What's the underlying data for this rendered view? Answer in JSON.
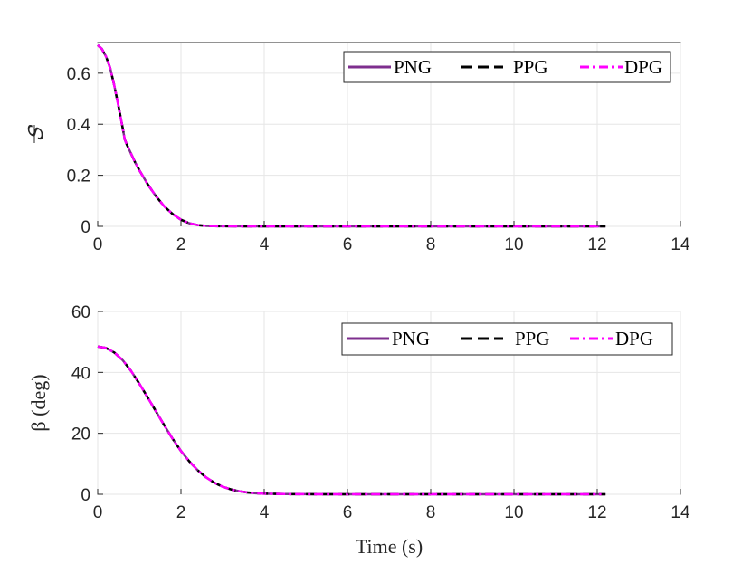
{
  "chart_data": [
    {
      "type": "line",
      "ylabel": "𝑆",
      "xlabel": "",
      "xlim": [
        0,
        14
      ],
      "ylim": [
        0,
        0.72
      ],
      "xticks": [
        "0",
        "2",
        "4",
        "6",
        "8",
        "10",
        "12",
        "14"
      ],
      "yticks": [
        "0",
        "0.2",
        "0.4",
        "0.6"
      ],
      "grid": true,
      "legend_position": "top-right",
      "series": [
        {
          "name": "PNG",
          "color": "#7e2f8e",
          "dash": "solid",
          "x": [
            0,
            0.1,
            0.2,
            0.3,
            0.4,
            0.5,
            0.6,
            0.65,
            0.7,
            0.8,
            0.9,
            1.0,
            1.2,
            1.4,
            1.6,
            1.8,
            2.0,
            2.2,
            2.4,
            2.6,
            2.8,
            3.0,
            4.0,
            6.0,
            8.0,
            10.0,
            12.0,
            12.2
          ],
          "y": [
            0.71,
            0.695,
            0.665,
            0.62,
            0.55,
            0.47,
            0.385,
            0.34,
            0.32,
            0.285,
            0.25,
            0.22,
            0.165,
            0.118,
            0.078,
            0.048,
            0.026,
            0.012,
            0.005,
            0.002,
            0.0008,
            0.0003,
            0,
            0,
            0,
            0,
            0,
            0
          ]
        },
        {
          "name": "PPG",
          "color": "#000000",
          "dash": "dashed",
          "x": [
            0,
            0.1,
            0.2,
            0.3,
            0.4,
            0.5,
            0.6,
            0.65,
            0.7,
            0.8,
            0.9,
            1.0,
            1.2,
            1.4,
            1.6,
            1.8,
            2.0,
            2.2,
            2.4,
            2.6,
            2.8,
            3.0,
            4.0,
            6.0,
            8.0,
            10.0,
            12.0,
            12.2
          ],
          "y": [
            0.71,
            0.695,
            0.665,
            0.62,
            0.55,
            0.47,
            0.385,
            0.34,
            0.32,
            0.285,
            0.25,
            0.22,
            0.165,
            0.118,
            0.078,
            0.048,
            0.026,
            0.012,
            0.005,
            0.002,
            0.0008,
            0.0003,
            0,
            0,
            0,
            0,
            0,
            0
          ]
        },
        {
          "name": "DPG",
          "color": "#ff00ff",
          "dash": "dashdot",
          "x": [
            0,
            0.1,
            0.2,
            0.3,
            0.4,
            0.5,
            0.6,
            0.65,
            0.7,
            0.8,
            0.9,
            1.0,
            1.2,
            1.4,
            1.6,
            1.8,
            2.0,
            2.2,
            2.4,
            2.6,
            2.8,
            3.0,
            4.0,
            6.0,
            8.0,
            10.0,
            12.0,
            12.1
          ],
          "y": [
            0.71,
            0.695,
            0.665,
            0.62,
            0.55,
            0.47,
            0.385,
            0.34,
            0.32,
            0.285,
            0.25,
            0.22,
            0.165,
            0.118,
            0.078,
            0.048,
            0.026,
            0.012,
            0.005,
            0.002,
            0.0008,
            0.0003,
            0,
            0,
            0,
            0,
            0,
            0
          ]
        }
      ]
    },
    {
      "type": "line",
      "ylabel": "β (deg)",
      "xlabel": "Time (s)",
      "xlim": [
        0,
        14
      ],
      "ylim": [
        0,
        60
      ],
      "xticks": [
        "0",
        "2",
        "4",
        "6",
        "8",
        "10",
        "12",
        "14"
      ],
      "yticks": [
        "0",
        "20",
        "40",
        "60"
      ],
      "grid": true,
      "legend_position": "top-right",
      "series": [
        {
          "name": "PNG",
          "color": "#7e2f8e",
          "dash": "solid",
          "x": [
            0,
            0.2,
            0.4,
            0.6,
            0.8,
            1.0,
            1.2,
            1.4,
            1.6,
            1.8,
            2.0,
            2.2,
            2.4,
            2.6,
            2.8,
            3.0,
            3.2,
            3.4,
            3.6,
            3.8,
            4.0,
            4.5,
            5.0,
            6.0,
            8.0,
            10.0,
            12.0,
            12.2
          ],
          "y": [
            48.5,
            48.0,
            46.5,
            44.0,
            40.5,
            36.3,
            31.8,
            27.2,
            22.6,
            18.2,
            14.2,
            10.8,
            7.9,
            5.6,
            3.8,
            2.5,
            1.6,
            1.0,
            0.6,
            0.35,
            0.2,
            0.06,
            0.02,
            0,
            0,
            0,
            0,
            0
          ]
        },
        {
          "name": "PPG",
          "color": "#000000",
          "dash": "dashed",
          "x": [
            0,
            0.2,
            0.4,
            0.6,
            0.8,
            1.0,
            1.2,
            1.4,
            1.6,
            1.8,
            2.0,
            2.2,
            2.4,
            2.6,
            2.8,
            3.0,
            3.2,
            3.4,
            3.6,
            3.8,
            4.0,
            4.5,
            5.0,
            6.0,
            8.0,
            10.0,
            12.0,
            12.2
          ],
          "y": [
            48.5,
            48.0,
            46.5,
            44.0,
            40.5,
            36.3,
            31.8,
            27.2,
            22.6,
            18.2,
            14.2,
            10.8,
            7.9,
            5.6,
            3.8,
            2.5,
            1.6,
            1.0,
            0.6,
            0.35,
            0.2,
            0.06,
            0.02,
            0,
            0,
            0,
            0,
            0
          ]
        },
        {
          "name": "DPG",
          "color": "#ff00ff",
          "dash": "dashdot",
          "x": [
            0,
            0.2,
            0.4,
            0.6,
            0.8,
            1.0,
            1.2,
            1.4,
            1.6,
            1.8,
            2.0,
            2.2,
            2.4,
            2.6,
            2.8,
            3.0,
            3.2,
            3.4,
            3.6,
            3.8,
            4.0,
            4.5,
            5.0,
            6.0,
            8.0,
            10.0,
            12.0,
            12.1
          ],
          "y": [
            48.5,
            48.0,
            46.5,
            44.0,
            40.5,
            36.3,
            31.8,
            27.2,
            22.6,
            18.2,
            14.2,
            10.8,
            7.9,
            5.6,
            3.8,
            2.5,
            1.6,
            1.0,
            0.6,
            0.35,
            0.2,
            0.06,
            0.02,
            0,
            0,
            0,
            0,
            0
          ]
        }
      ]
    }
  ]
}
